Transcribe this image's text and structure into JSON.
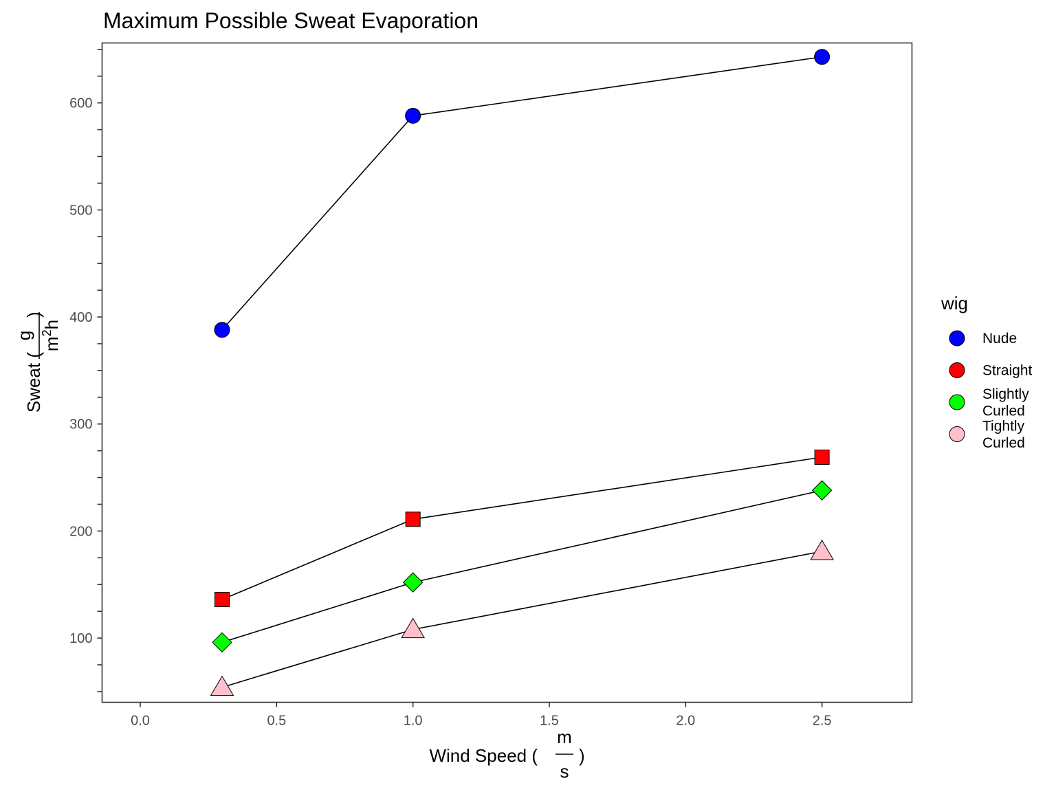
{
  "chart_data": {
    "type": "line",
    "title": "Maximum Possible Sweat Evaporation",
    "xlabel": {
      "text": "Wind Speed (",
      "close": ")",
      "unit_numerator": "m",
      "unit_denominator": "s"
    },
    "ylabel": {
      "text": "Sweat (",
      "close": ")",
      "unit_numerator": "g",
      "unit_denominator_base": "m",
      "unit_denominator_sup": "2",
      "unit_denominator_rest": "h"
    },
    "xlim": [
      -0.14,
      2.83
    ],
    "ylim": [
      40,
      656
    ],
    "x_ticks": [
      0.0,
      0.5,
      1.0,
      1.5,
      2.0,
      2.5
    ],
    "x_tick_labels": [
      "0.0",
      "0.5",
      "1.0",
      "1.5",
      "2.0",
      "2.5"
    ],
    "y_ticks": [
      100,
      200,
      300,
      400,
      500,
      600
    ],
    "y_tick_labels": [
      "100",
      "200",
      "300",
      "400",
      "500",
      "600"
    ],
    "y_minor_tick_step": 25,
    "grid": false,
    "legend": {
      "title": "wig",
      "placement": "right",
      "entries": [
        {
          "label_lines": [
            "Nude"
          ],
          "color": "#0000ff",
          "shape": "circle"
        },
        {
          "label_lines": [
            "Straight"
          ],
          "color": "#ff0000",
          "shape": "circle"
        },
        {
          "label_lines": [
            "Slightly",
            "Curled"
          ],
          "color": "#00ff00",
          "shape": "circle"
        },
        {
          "label_lines": [
            "Tightly",
            "Curled"
          ],
          "color": "#ffc0cb",
          "shape": "circle"
        }
      ]
    },
    "x": [
      0.3,
      1.0,
      2.5
    ],
    "series": [
      {
        "name": "Nude",
        "values": [
          388,
          588,
          643
        ],
        "color": "#0000ff",
        "marker": "circle"
      },
      {
        "name": "Straight",
        "values": [
          136,
          211,
          269
        ],
        "color": "#ff0000",
        "marker": "square"
      },
      {
        "name": "Slightly Curled",
        "values": [
          96,
          152,
          238
        ],
        "color": "#00ff00",
        "marker": "diamond"
      },
      {
        "name": "Tightly Curled",
        "values": [
          54,
          108,
          181
        ],
        "color": "#ffc0cb",
        "marker": "triangle"
      }
    ]
  }
}
